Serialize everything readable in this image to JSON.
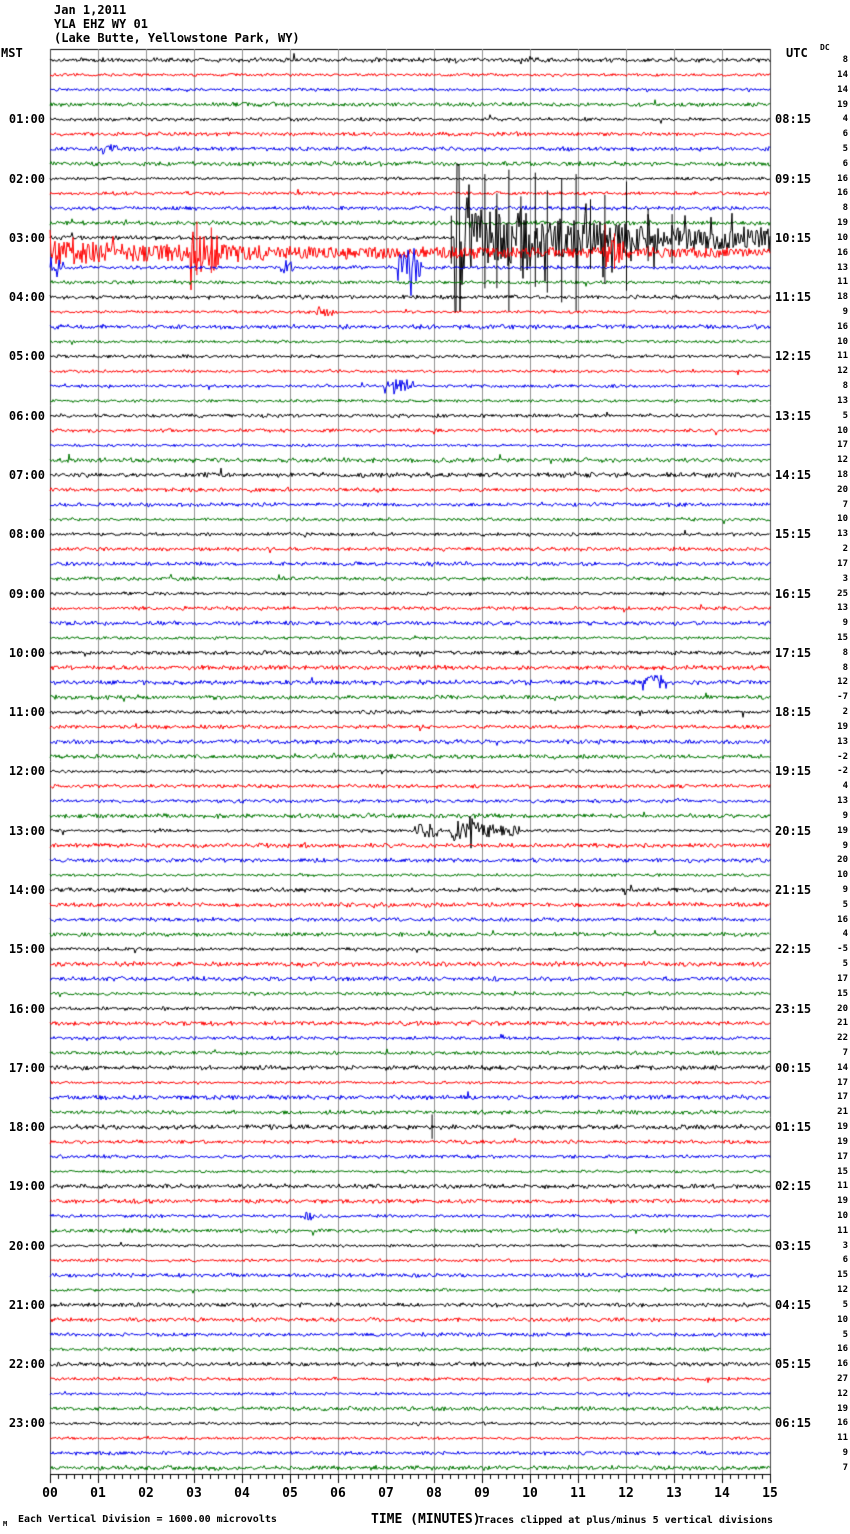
{
  "header": {
    "date": "Jan 1,2011",
    "station": "YLA EHZ WY 01",
    "location": "(Lake Butte, Yellowstone Park, WY)"
  },
  "axes": {
    "left_label": "MST",
    "right_label": "UTC",
    "dc_label": "DC",
    "x_title": "TIME (MINUTES)",
    "x_tick_labels": [
      "00",
      "01",
      "02",
      "03",
      "04",
      "05",
      "06",
      "07",
      "08",
      "09",
      "10",
      "11",
      "12",
      "13",
      "14",
      "15"
    ]
  },
  "footer": {
    "marker": "M",
    "scale_note": "Each Vertical Division = 1600.00 microvolts",
    "clip_note": "Traces clipped at plus/minus 5 vertical divisions"
  },
  "colors": {
    "trace_cycle": [
      "#000000",
      "#ff0000",
      "#0000ee",
      "#007700"
    ],
    "grid": "#909090",
    "border": "#444444",
    "axis": "#000000",
    "background": "#ffffff"
  },
  "chart_data": {
    "type": "line",
    "subtype": "helicorder-seismogram",
    "minutes_per_line": 15,
    "x_range": [
      0,
      15
    ],
    "lines": 96,
    "traces_per_hour": 4,
    "clip_divisions": 5,
    "microvolts_per_division": 1600,
    "hour_labels_mst": [
      "01:00",
      "02:00",
      "03:00",
      "04:00",
      "05:00",
      "06:00",
      "07:00",
      "08:00",
      "09:00",
      "10:00",
      "11:00",
      "12:00",
      "13:00",
      "14:00",
      "15:00",
      "16:00",
      "17:00",
      "18:00",
      "19:00",
      "20:00",
      "21:00",
      "22:00",
      "23:00"
    ],
    "hour_labels_utc": [
      "08:15",
      "09:15",
      "10:15",
      "11:15",
      "12:15",
      "13:15",
      "14:15",
      "15:15",
      "16:15",
      "17:15",
      "18:15",
      "19:15",
      "20:15",
      "21:15",
      "22:15",
      "23:15",
      "00:15",
      "01:15",
      "02:15",
      "03:15",
      "04:15",
      "05:15",
      "06:15"
    ],
    "dc_offsets": [
      8,
      14,
      14,
      19,
      4,
      6,
      5,
      6,
      16,
      16,
      8,
      19,
      10,
      16,
      13,
      11,
      18,
      9,
      16,
      10,
      11,
      12,
      8,
      13,
      5,
      10,
      17,
      12,
      18,
      20,
      7,
      10,
      13,
      2,
      17,
      3,
      25,
      13,
      9,
      15,
      8,
      8,
      12,
      -7,
      2,
      19,
      13,
      -2,
      -2,
      4,
      13,
      9,
      19,
      9,
      20,
      10,
      9,
      5,
      16,
      4,
      -5,
      5,
      17,
      15,
      20,
      21,
      22,
      7,
      14,
      17,
      17,
      21,
      19,
      19,
      17,
      15,
      11,
      19,
      10,
      11,
      3,
      6,
      15,
      12,
      5,
      10,
      5,
      16,
      16,
      27,
      12,
      19,
      16,
      11,
      9,
      7
    ],
    "events": [
      {
        "row": 6,
        "mst": "01:30",
        "segments": [
          [
            1.1,
            1.4,
            0.3
          ]
        ],
        "spikes": []
      },
      {
        "row": 12,
        "mst": "03:00",
        "utc": "10:15",
        "segments": [
          [
            8.42,
            8.8,
            5.0
          ],
          [
            8.8,
            10.5,
            2.0
          ],
          [
            10.5,
            12.3,
            1.25
          ],
          [
            12.3,
            15,
            0.8
          ]
        ],
        "spikes": [
          [
            8.35,
            1.5
          ],
          [
            9.05,
            4.3
          ],
          [
            9.3,
            3.0
          ],
          [
            9.55,
            4.6
          ],
          [
            9.8,
            2.8
          ],
          [
            10.1,
            4.4
          ],
          [
            10.35,
            3.2
          ],
          [
            10.65,
            4.0
          ],
          [
            10.95,
            4.3
          ],
          [
            11.25,
            2.6
          ],
          [
            11.55,
            2.9
          ],
          [
            12.0,
            3.8
          ],
          [
            12.45,
            2.0
          ],
          [
            12.95,
            1.6
          ]
        ]
      },
      {
        "row": 13,
        "mst": "03:15",
        "utc": "10:30",
        "segments": [
          [
            0,
            1.3,
            0.75
          ],
          [
            1.3,
            2.9,
            0.55
          ],
          [
            2.9,
            3.55,
            1.4
          ],
          [
            3.55,
            4.7,
            0.5
          ],
          [
            4.7,
            11.55,
            0.3
          ],
          [
            11.55,
            11.95,
            0.9
          ],
          [
            11.95,
            15,
            0.27
          ]
        ],
        "spikes": [
          [
            3.05,
            2.1
          ],
          [
            3.35,
            1.7
          ],
          [
            11.75,
            1.3
          ]
        ]
      },
      {
        "row": 14,
        "mst": "03:30",
        "utc": "10:45",
        "segments": [
          [
            0,
            0.28,
            0.6
          ],
          [
            4.8,
            5.1,
            0.4
          ],
          [
            7.25,
            7.75,
            0.85
          ]
        ],
        "spikes": []
      },
      {
        "row": 17,
        "mst": "04:15",
        "segments": [
          [
            5.55,
            5.9,
            0.4
          ]
        ],
        "spikes": []
      },
      {
        "row": 22,
        "mst": "05:30",
        "segments": [
          [
            6.95,
            7.6,
            0.5
          ]
        ],
        "spikes": []
      },
      {
        "row": 42,
        "mst": "10:30",
        "segments": [
          [
            12.35,
            12.85,
            0.55
          ]
        ],
        "spikes": []
      },
      {
        "row": 52,
        "mst": "13:00",
        "utc": "20:15",
        "segments": [
          [
            7.6,
            8.15,
            0.45
          ],
          [
            8.3,
            9.05,
            0.7
          ],
          [
            9.05,
            9.85,
            0.35
          ]
        ],
        "spikes": []
      },
      {
        "row": 72,
        "mst": "18:00",
        "segments": [],
        "spikes": [
          [
            7.95,
            0.85
          ]
        ]
      },
      {
        "row": 78,
        "mst": "19:30",
        "segments": [
          [
            5.2,
            5.5,
            0.3
          ]
        ],
        "spikes": []
      }
    ]
  }
}
